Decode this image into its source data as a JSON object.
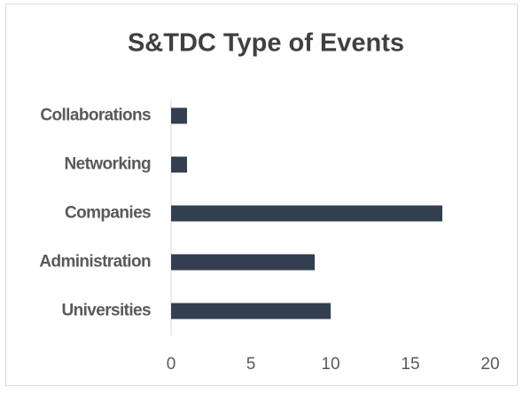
{
  "chart_data": {
    "type": "bar",
    "orientation": "horizontal",
    "title": "S&TDC Type of Events",
    "categories": [
      "Collaborations",
      "Networking",
      "Companies",
      "Administration",
      "Universities"
    ],
    "values": [
      1,
      1,
      17,
      9,
      10
    ],
    "color": "#333f50",
    "xlim": [
      0,
      20
    ],
    "xticks": [
      0,
      5,
      10,
      15,
      20
    ],
    "grid": false
  }
}
